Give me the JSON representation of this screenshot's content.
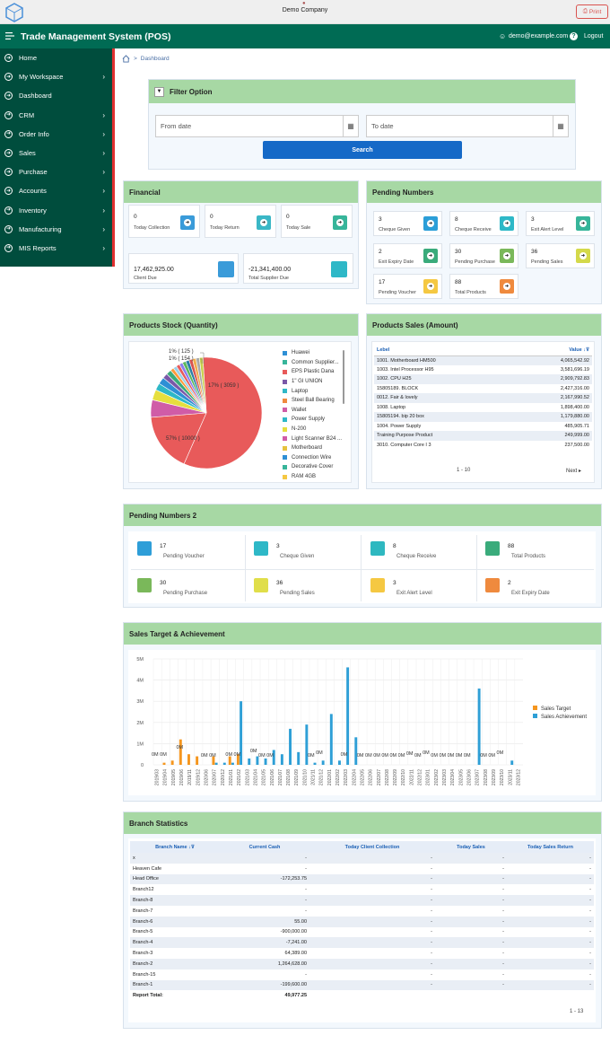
{
  "header": {
    "company": "Demo Company",
    "print_label": "Print"
  },
  "appbar": {
    "title": "Trade Management System (POS)",
    "user_email": "demo@example.com",
    "help_label": "?",
    "logout_label": "Logout"
  },
  "sidebar": {
    "items": [
      {
        "label": "Home",
        "chevron": false
      },
      {
        "label": "My Workspace",
        "chevron": true
      },
      {
        "label": "Dashboard",
        "chevron": false
      },
      {
        "label": "CRM",
        "chevron": true
      },
      {
        "label": "Order Info",
        "chevron": true
      },
      {
        "label": "Sales",
        "chevron": true
      },
      {
        "label": "Purchase",
        "chevron": true
      },
      {
        "label": "Accounts",
        "chevron": true
      },
      {
        "label": "Inventory",
        "chevron": true
      },
      {
        "label": "Manufacturing",
        "chevron": true
      },
      {
        "label": "MIS Reports",
        "chevron": true
      }
    ]
  },
  "breadcrumb": {
    "separator": ">",
    "current": "Dashboard"
  },
  "filter": {
    "title": "Filter Option",
    "from_placeholder": "From date",
    "to_placeholder": "To date",
    "search_label": "Search"
  },
  "financial": {
    "title": "Financial",
    "cards": [
      {
        "value": "0",
        "label": "Today Collection",
        "color": "#3a9bd9"
      },
      {
        "value": "0",
        "label": "Today Return",
        "color": "#3ab7c6"
      },
      {
        "value": "0",
        "label": "Today Sale",
        "color": "#37b59a"
      }
    ],
    "big_cards": [
      {
        "value": "17,462,925.00",
        "label": "Client Due",
        "color": "#3a9bd9"
      },
      {
        "value": "-21,341,400.00",
        "label": "Total Supplier Due",
        "color": "#2eb8c7"
      }
    ]
  },
  "pending": {
    "title": "Pending Numbers",
    "cards": [
      {
        "value": "3",
        "label": "Cheque Given",
        "color": "#2b9ed8"
      },
      {
        "value": "8",
        "label": "Cheque Receive",
        "color": "#2eb8c7"
      },
      {
        "value": "3",
        "label": "Exit Alert Level",
        "color": "#37b59a"
      },
      {
        "value": "2",
        "label": "Exit Expiry Date",
        "color": "#3aab7b"
      },
      {
        "value": "30",
        "label": "Pending Purchase",
        "color": "#7ab85a"
      },
      {
        "value": "36",
        "label": "Pending Sales",
        "color": "#d4d94a"
      },
      {
        "value": "17",
        "label": "Pending Voucher",
        "color": "#f5c842"
      },
      {
        "value": "88",
        "label": "Total Products",
        "color": "#ef8a3e"
      }
    ]
  },
  "stock": {
    "title": "Products Stock (Quantity)",
    "pie_labels": {
      "big": "57% ( 10000 )",
      "med": "17% ( 3059 )",
      "s1": "1% ( 125 )",
      "s2": "1% ( 154 )"
    },
    "slices": [
      {
        "value": 57,
        "color": "#e85a5a"
      },
      {
        "value": 17,
        "color": "#e85a5a"
      },
      {
        "value": 5,
        "color": "#d05ca7"
      },
      {
        "value": 3,
        "color": "#e6df3e"
      },
      {
        "value": 2,
        "color": "#2eb8c7"
      },
      {
        "value": 2,
        "color": "#2e8fd5"
      },
      {
        "value": 1.5,
        "color": "#7a58a8"
      },
      {
        "value": 1.5,
        "color": "#3aab7b"
      },
      {
        "value": 1,
        "color": "#ff9a3a"
      },
      {
        "value": 1,
        "color": "#9bd0e8"
      },
      {
        "value": 1,
        "color": "#e85a5a"
      },
      {
        "value": 1,
        "color": "#8a7df0"
      },
      {
        "value": 1,
        "color": "#5cb85c"
      },
      {
        "value": 1,
        "color": "#2b7ea8"
      },
      {
        "value": 1,
        "color": "#d9534f"
      },
      {
        "value": 1,
        "color": "#f0ad4e"
      },
      {
        "value": 1,
        "color": "#aaa"
      },
      {
        "value": 1,
        "color": "#c8d04a"
      }
    ],
    "legend": [
      {
        "label": "Huawei",
        "color": "#2e8fd5"
      },
      {
        "label": "Common Supplier...",
        "color": "#37b59a"
      },
      {
        "label": "EPS Plastic Dana",
        "color": "#e85a5a"
      },
      {
        "label": "1\" GI UNION",
        "color": "#7a58a8"
      },
      {
        "label": "Laptop",
        "color": "#2eb8c7"
      },
      {
        "label": "Steel Ball Bearing",
        "color": "#ef8a3e"
      },
      {
        "label": "Wallet",
        "color": "#d05ca7"
      },
      {
        "label": "Power Supply",
        "color": "#2eb8c7"
      },
      {
        "label": "N-200",
        "color": "#e6df3e"
      },
      {
        "label": "Light Scanner B24 ...",
        "color": "#d05ca7"
      },
      {
        "label": "Motherboard",
        "color": "#e6c23e"
      },
      {
        "label": "Connection Wire",
        "color": "#2e8fd5"
      },
      {
        "label": "Decorative Cover",
        "color": "#37b59a"
      },
      {
        "label": "RAM 4GB",
        "color": "#f5c842"
      }
    ]
  },
  "sales": {
    "title": "Products Sales (Amount)",
    "col_label": "Lebel",
    "col_value": "Value",
    "rows": [
      {
        "label": "1001. Motherboard HM500",
        "value": "4,065,542.92"
      },
      {
        "label": "1003. Intel Processor H95",
        "value": "3,581,696.19"
      },
      {
        "label": "1002. CPU H25",
        "value": "2,909,792.83"
      },
      {
        "label": "15805189. BLOCK",
        "value": "2,427,316.00"
      },
      {
        "label": "0012. Fair & lovely",
        "value": "2,167,990.52"
      },
      {
        "label": "1008. Laptop",
        "value": "1,898,400.00"
      },
      {
        "label": "15805194. bip 20 box",
        "value": "1,179,880.00"
      },
      {
        "label": "1004. Power Supply",
        "value": "485,905.71"
      },
      {
        "label": " Training Purpose Product",
        "value": "249,999.00"
      },
      {
        "label": "3010. Computer Core I 3",
        "value": "237,500.00"
      }
    ],
    "pagination": "1 - 10",
    "next_label": "Next"
  },
  "pending2": {
    "title": "Pending Numbers 2",
    "cards": [
      {
        "value": "17",
        "label": "Pending Voucher",
        "color": "#2e9ed8"
      },
      {
        "value": "3",
        "label": "Cheque Given",
        "color": "#2eb8c7"
      },
      {
        "value": "8",
        "label": "Cheque Receive",
        "color": "#2eb8c0"
      },
      {
        "value": "88",
        "label": "Total Products",
        "color": "#3aab7b"
      },
      {
        "value": "30",
        "label": "Pending Purchase",
        "color": "#7ab85a"
      },
      {
        "value": "36",
        "label": "Pending Sales",
        "color": "#e0de4a"
      },
      {
        "value": "3",
        "label": "Exit Alert Level",
        "color": "#f5c842"
      },
      {
        "value": "2",
        "label": "Exit Expiry Date",
        "color": "#ef8a3e"
      }
    ]
  },
  "target": {
    "title": "Sales Target & Achievement",
    "chart_data": {
      "type": "bar",
      "title": "",
      "xlabel": "",
      "ylabel": "",
      "ylim": [
        0,
        5
      ],
      "y_ticks": [
        "0",
        "1M",
        "2M",
        "3M",
        "4M",
        "5M"
      ],
      "legend_position": "right",
      "grid": true,
      "categories": [
        "2019/03",
        "2019/04",
        "2019/05",
        "2019/06",
        "2019/11",
        "2019/12",
        "2020/06",
        "2020/07",
        "2020/12",
        "2021/01",
        "2021/02",
        "2021/03",
        "2021/04",
        "2021/05",
        "2021/06",
        "2021/07",
        "2021/08",
        "2021/09",
        "2021/10",
        "2021/11",
        "2021/12",
        "2022/01",
        "2022/02",
        "2022/03",
        "2022/04",
        "2022/05",
        "2022/06",
        "2022/07",
        "2022/08",
        "2022/09",
        "2022/10",
        "2022/11",
        "2022/12",
        "2023/01",
        "2023/02",
        "2023/03",
        "2023/04",
        "2023/05",
        "2023/06",
        "2023/07",
        "2023/08",
        "2023/09",
        "2023/10",
        "2023/11",
        "2023/12"
      ],
      "series": [
        {
          "name": "Sales Target",
          "color": "#f5961e",
          "values": [
            0,
            0.1,
            0.2,
            1.2,
            0.5,
            0.4,
            0,
            0.4,
            0,
            0.4,
            0.5,
            0,
            0,
            0,
            0,
            0,
            0,
            0,
            0,
            0,
            0,
            0,
            0,
            0,
            0,
            0,
            0,
            0,
            0,
            0,
            0,
            0,
            0,
            0,
            0,
            0,
            0,
            0,
            0,
            0,
            0,
            0,
            0,
            0,
            0
          ]
        },
        {
          "name": "Sales Achievement",
          "color": "#2e9fd6",
          "values": [
            0,
            0,
            0,
            0,
            0,
            0,
            0,
            0.1,
            0.1,
            0.1,
            3.0,
            0.3,
            0.4,
            0.3,
            0.7,
            0.5,
            1.7,
            0.6,
            1.9,
            0.1,
            0.2,
            2.4,
            0.2,
            4.6,
            1.3,
            0,
            0,
            0,
            0,
            0,
            0,
            0,
            0,
            0,
            0,
            0,
            0,
            0,
            0,
            3.6,
            0,
            0,
            0,
            0.2,
            0
          ]
        }
      ],
      "value_labels": [
        "0M",
        "0M",
        "0M",
        "0M",
        "0M",
        "0M",
        "0M",
        "0M",
        "0M",
        "0M",
        "0M",
        "0M",
        "0M",
        "0M",
        "0M",
        "0M",
        "0M",
        "0M",
        "0M",
        "0M",
        "0M",
        "0M",
        "0M",
        "0M",
        "0M",
        "0M",
        "0M",
        "0M",
        "0M",
        "0M"
      ]
    }
  },
  "branch": {
    "title": "Branch Statistics",
    "columns": [
      "Branch Name",
      "Current Cash",
      "Today Client Collection",
      "Today Sales",
      "Today Sales Return"
    ],
    "rows": [
      [
        "x",
        "-",
        "-",
        "-",
        "-"
      ],
      [
        "Heaven Cafe",
        "-",
        "-",
        "-",
        "-"
      ],
      [
        "Head Office",
        "-172,253.75",
        "-",
        "-",
        "-"
      ],
      [
        "Branch12",
        "-",
        "-",
        "-",
        "-"
      ],
      [
        "Branch-8",
        "-",
        "-",
        "-",
        "-"
      ],
      [
        "Branch-7",
        "-",
        "-",
        "-",
        "-"
      ],
      [
        "Branch-6",
        "55.00",
        "-",
        "-",
        "-"
      ],
      [
        "Branch-5",
        "-900,000.00",
        "-",
        "-",
        "-"
      ],
      [
        "Branch-4",
        "-7,241.00",
        "-",
        "-",
        "-"
      ],
      [
        "Branch-3",
        "64,389.00",
        "-",
        "-",
        "-"
      ],
      [
        "Branch-2",
        "1,264,628.00",
        "-",
        "-",
        "-"
      ],
      [
        "Branch-15",
        "-",
        "-",
        "-",
        "-"
      ],
      [
        "Branch-1",
        "-199,600.00",
        "-",
        "-",
        "-"
      ]
    ],
    "total_label": "Report Total:",
    "total_value": "49,977.25",
    "pagination": "1 - 13"
  }
}
